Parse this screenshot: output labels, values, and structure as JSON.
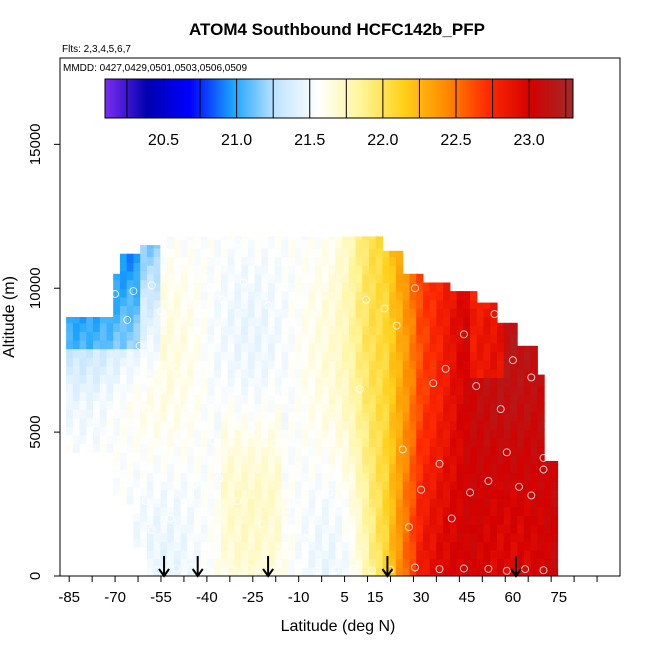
{
  "chart_data": {
    "type": "heatmap",
    "title": "ATOM4 Southbound HCFC142b_PFP",
    "subtitle_flights": "Flts: 2,3,4,5,6,7",
    "subtitle_dates": "MMDD: 0427,0429,0501,0503,0506,0509",
    "xlabel": "Latitude (deg N)",
    "ylabel": "Altitude (m)",
    "xlim": [
      -88,
      95
    ],
    "ylim": [
      0,
      18000
    ],
    "x_ticks": [
      -85,
      -70,
      -55,
      -40,
      -25,
      -10,
      5,
      15,
      30,
      45,
      60,
      75
    ],
    "x_tick_labels": [
      "-85",
      "-70",
      "-55",
      "-40",
      "-25",
      "-10",
      "5",
      "15",
      "30",
      "45",
      "60",
      "75"
    ],
    "y_ticks": [
      0,
      5000,
      10000,
      15000
    ],
    "y_tick_labels": [
      "0",
      "5000",
      "10000",
      "15000"
    ],
    "colorbar": {
      "min": 20.1,
      "max": 23.3,
      "ticks": [
        20.5,
        21.0,
        21.5,
        22.0,
        22.5,
        23.0
      ],
      "tick_labels": [
        "20.5",
        "21.0",
        "21.5",
        "22.0",
        "22.5",
        "23.0"
      ],
      "colors": [
        "#7b2ef0",
        "#0000b0",
        "#0000ff",
        "#1aa3ff",
        "#bfe3ff",
        "#ffffff",
        "#fff59a",
        "#ffd11a",
        "#ff8c00",
        "#ff2a00",
        "#d40000",
        "#a02a2a"
      ]
    },
    "profile_arrows_lat": [
      -54,
      -43,
      -20,
      19,
      61
    ],
    "sample_points": [
      [
        -70,
        9800
      ],
      [
        -64,
        9900
      ],
      [
        -58,
        10100
      ],
      [
        -66,
        8900
      ],
      [
        -62,
        8000
      ],
      [
        -55,
        9200
      ],
      [
        -50,
        7200
      ],
      [
        -46,
        9400
      ],
      [
        -40,
        10500
      ],
      [
        -35,
        9600
      ],
      [
        -28,
        10200
      ],
      [
        -20,
        9400
      ],
      [
        -12,
        8800
      ],
      [
        -5,
        10400
      ],
      [
        -62,
        6800
      ],
      [
        -60,
        5800
      ],
      [
        -55,
        6500
      ],
      [
        -48,
        6000
      ],
      [
        -43,
        5600
      ],
      [
        -38,
        4700
      ],
      [
        -33,
        4300
      ],
      [
        -24,
        5000
      ],
      [
        -18,
        4600
      ],
      [
        -10,
        3800
      ],
      [
        -68,
        2800
      ],
      [
        -65,
        2200
      ],
      [
        -60,
        2600
      ],
      [
        -52,
        2000
      ],
      [
        -44,
        3200
      ],
      [
        -36,
        3400
      ],
      [
        -30,
        2600
      ],
      [
        -22,
        1800
      ],
      [
        -14,
        2300
      ],
      [
        -7,
        1500
      ],
      [
        0,
        2900
      ],
      [
        6,
        3300
      ],
      [
        10,
        6500
      ],
      [
        12,
        9600
      ],
      [
        -58,
        1600
      ],
      [
        -66,
        600
      ],
      [
        -62,
        300
      ],
      [
        -56,
        200
      ],
      [
        -50,
        250
      ],
      [
        -45,
        300
      ],
      [
        -40,
        180
      ],
      [
        -32,
        220
      ],
      [
        -26,
        250
      ],
      [
        -18,
        200
      ],
      [
        -10,
        260
      ],
      [
        -4,
        180
      ],
      [
        2,
        220
      ],
      [
        8,
        250
      ],
      [
        14,
        200
      ],
      [
        20,
        220
      ],
      [
        28,
        300
      ],
      [
        36,
        240
      ],
      [
        44,
        260
      ],
      [
        52,
        250
      ],
      [
        58,
        180
      ],
      [
        64,
        240
      ],
      [
        70,
        200
      ],
      [
        18,
        9300
      ],
      [
        22,
        8700
      ],
      [
        28,
        10000
      ],
      [
        34,
        6700
      ],
      [
        38,
        7200
      ],
      [
        44,
        8400
      ],
      [
        50,
        10300
      ],
      [
        54,
        9100
      ],
      [
        60,
        7500
      ],
      [
        66,
        6900
      ],
      [
        70,
        3700
      ],
      [
        24,
        4400
      ],
      [
        30,
        3000
      ],
      [
        36,
        3900
      ],
      [
        46,
        2900
      ],
      [
        52,
        3300
      ],
      [
        58,
        4300
      ],
      [
        62,
        3100
      ],
      [
        66,
        2800
      ],
      [
        70,
        4100
      ],
      [
        26,
        1700
      ],
      [
        40,
        2000
      ],
      [
        48,
        6600
      ],
      [
        56,
        5800
      ],
      [
        64,
        8200
      ],
      [
        -30,
        11600
      ],
      [
        -60,
        11800
      ],
      [
        0,
        11400
      ]
    ]
  }
}
